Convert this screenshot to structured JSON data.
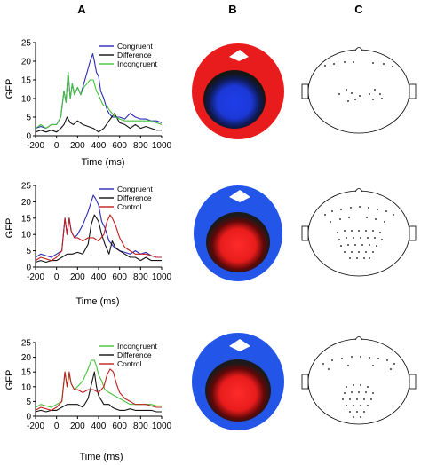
{
  "panel_labels": [
    "A",
    "B",
    "C"
  ],
  "colors": {
    "Congruent": "#2a2ab8",
    "Difference": "#111111",
    "Incongruent": "#44c23a",
    "Control": "#c02020",
    "map_red": "#e81c1c",
    "map_blue": "#2255e8",
    "map_white": "#ffffff"
  },
  "chart_data": [
    {
      "type": "line",
      "title": "",
      "xlabel": "Time (ms)",
      "ylabel": "GFP",
      "xlim": [
        -200,
        1000
      ],
      "ylim": [
        0,
        25
      ],
      "xticks": [
        -200,
        0,
        200,
        400,
        600,
        800,
        1000
      ],
      "yticks": [
        0,
        5,
        10,
        15,
        20,
        25
      ],
      "legend": "top-right",
      "series": [
        {
          "name": "Congruent",
          "x": [
            -200,
            -150,
            -100,
            -50,
            0,
            40,
            70,
            90,
            110,
            130,
            150,
            170,
            200,
            230,
            260,
            290,
            320,
            345,
            360,
            380,
            400,
            420,
            450,
            480,
            500,
            530,
            560,
            600,
            650,
            700,
            750,
            800,
            850,
            900,
            950,
            1000
          ],
          "y": [
            2,
            2.5,
            2,
            3,
            3,
            5,
            12,
            9,
            17,
            10,
            14,
            11,
            13,
            11,
            14,
            17,
            20,
            22,
            20,
            17,
            16,
            12,
            10,
            7,
            6,
            5,
            5,
            5,
            4.5,
            6,
            5,
            4.5,
            4.5,
            4,
            4,
            3.5
          ]
        },
        {
          "name": "Difference",
          "x": [
            -200,
            -150,
            -100,
            -50,
            0,
            40,
            70,
            100,
            130,
            160,
            200,
            250,
            300,
            350,
            400,
            450,
            500,
            550,
            600,
            650,
            700,
            750,
            800,
            850,
            900,
            950,
            1000
          ],
          "y": [
            1,
            1.5,
            1,
            1.5,
            1,
            2,
            3,
            5,
            3.5,
            3,
            4,
            3,
            2.5,
            2,
            1,
            2,
            4,
            6,
            3.5,
            3,
            2,
            3,
            2,
            2.5,
            2,
            1.5,
            1.5
          ]
        },
        {
          "name": "Incongruent",
          "x": [
            -200,
            -150,
            -100,
            -50,
            0,
            40,
            70,
            90,
            110,
            130,
            150,
            170,
            200,
            230,
            260,
            290,
            320,
            350,
            380,
            400,
            430,
            450,
            480,
            500,
            530,
            560,
            600,
            650,
            700,
            750,
            800,
            850,
            900,
            950,
            1000
          ],
          "y": [
            2,
            3,
            2,
            3,
            3,
            5,
            12,
            9,
            17,
            10,
            14,
            11,
            13,
            11,
            13,
            14,
            15,
            15,
            12,
            11,
            9,
            8,
            8,
            7,
            6,
            5,
            4.5,
            4,
            4,
            4,
            4,
            4,
            4,
            3.5,
            3
          ]
        }
      ]
    },
    {
      "type": "line",
      "title": "",
      "xlabel": "Time (ms)",
      "ylabel": "GFP",
      "xlim": [
        -200,
        1000
      ],
      "ylim": [
        0,
        25
      ],
      "xticks": [
        -200,
        0,
        200,
        400,
        600,
        800,
        1000
      ],
      "yticks": [
        0,
        5,
        10,
        15,
        20,
        25
      ],
      "legend": "top-right",
      "series": [
        {
          "name": "Congruent",
          "x": [
            -200,
            -150,
            -100,
            -50,
            0,
            50,
            80,
            100,
            120,
            140,
            170,
            200,
            250,
            300,
            330,
            350,
            370,
            400,
            430,
            460,
            500,
            550,
            600,
            650,
            700,
            750,
            800,
            850,
            900,
            950,
            1000
          ],
          "y": [
            3,
            4,
            3.5,
            3,
            4,
            5,
            15,
            10,
            15,
            11,
            9,
            10,
            13,
            17,
            20,
            22,
            21,
            19,
            14,
            12,
            8,
            6,
            5,
            4.5,
            4,
            5,
            4,
            4.5,
            3.5,
            3,
            3
          ]
        },
        {
          "name": "Difference",
          "x": [
            -200,
            -150,
            -100,
            -50,
            0,
            50,
            100,
            150,
            200,
            250,
            300,
            330,
            360,
            400,
            430,
            460,
            500,
            530,
            560,
            600,
            650,
            700,
            750,
            800,
            850,
            900,
            950,
            1000
          ],
          "y": [
            1.5,
            2,
            1.5,
            2,
            2,
            3,
            4,
            4,
            4.5,
            4,
            7,
            13,
            16,
            14,
            10,
            7,
            4,
            8,
            6,
            5,
            4,
            3,
            3,
            2,
            3,
            2,
            2,
            2
          ]
        },
        {
          "name": "Control",
          "x": [
            -200,
            -150,
            -100,
            -50,
            0,
            50,
            80,
            100,
            120,
            140,
            170,
            200,
            250,
            300,
            350,
            400,
            450,
            480,
            510,
            530,
            560,
            600,
            650,
            700,
            750,
            800,
            850,
            900,
            950,
            1000
          ],
          "y": [
            2,
            3,
            2.5,
            2,
            3,
            5,
            15,
            10,
            15,
            11,
            9,
            9,
            8,
            9,
            9,
            8,
            10,
            14,
            16,
            15,
            13,
            9,
            6,
            5,
            4,
            4,
            4,
            3.5,
            3,
            3
          ]
        }
      ]
    },
    {
      "type": "line",
      "title": "",
      "xlabel": "Time (ms)",
      "ylabel": "GFP",
      "xlim": [
        -200,
        1000
      ],
      "ylim": [
        0,
        25
      ],
      "xticks": [
        -200,
        0,
        200,
        400,
        600,
        800,
        1000
      ],
      "yticks": [
        0,
        5,
        10,
        15,
        20,
        25
      ],
      "legend": "top-right",
      "series": [
        {
          "name": "Incongruent",
          "x": [
            -200,
            -150,
            -100,
            -50,
            0,
            50,
            80,
            100,
            120,
            140,
            170,
            200,
            250,
            300,
            330,
            360,
            380,
            400,
            430,
            460,
            500,
            550,
            600,
            650,
            700,
            750,
            800,
            850,
            900,
            950,
            1000
          ],
          "y": [
            3,
            4,
            3.5,
            3,
            4,
            5,
            15,
            10,
            14,
            11,
            9,
            10,
            12,
            16,
            19,
            19,
            17,
            14,
            12,
            9,
            8,
            7,
            6,
            5,
            4,
            4,
            4,
            4,
            4,
            3.5,
            3.5
          ]
        },
        {
          "name": "Difference",
          "x": [
            -200,
            -150,
            -100,
            -50,
            0,
            50,
            100,
            150,
            200,
            250,
            300,
            340,
            360,
            380,
            400,
            450,
            500,
            530,
            560,
            600,
            650,
            700,
            750,
            800,
            850,
            900,
            950,
            1000
          ],
          "y": [
            1.5,
            2,
            1.5,
            2,
            2,
            3,
            4,
            4,
            4,
            3,
            6,
            12,
            15,
            10,
            7,
            4,
            4,
            3,
            2.5,
            2,
            2,
            2.5,
            2,
            2,
            2,
            2,
            1.5,
            1.5
          ]
        },
        {
          "name": "Control",
          "x": [
            -200,
            -150,
            -100,
            -50,
            0,
            50,
            80,
            100,
            120,
            140,
            170,
            200,
            250,
            300,
            350,
            400,
            450,
            480,
            510,
            540,
            570,
            600,
            650,
            700,
            750,
            800,
            850,
            900,
            950,
            1000
          ],
          "y": [
            2,
            3,
            2.5,
            2,
            3,
            5,
            15,
            10,
            15,
            11,
            9,
            9,
            8,
            9,
            9,
            8,
            10,
            14,
            16,
            15,
            11,
            8,
            6,
            5,
            4,
            4,
            4,
            3.5,
            3,
            3
          ]
        }
      ]
    }
  ]
}
